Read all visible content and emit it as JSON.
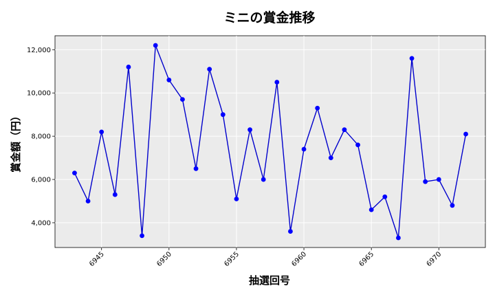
{
  "chart_data": {
    "type": "line",
    "title": "ミニの賞金推移",
    "xlabel": "抽選回号",
    "ylabel": "賞金額（円）",
    "x": [
      6943,
      6944,
      6945,
      6946,
      6947,
      6948,
      6949,
      6950,
      6951,
      6952,
      6953,
      6954,
      6955,
      6956,
      6957,
      6958,
      6959,
      6960,
      6961,
      6962,
      6963,
      6964,
      6965,
      6966,
      6967,
      6968,
      6969,
      6970,
      6971,
      6972
    ],
    "series": [
      {
        "values": [
          6300,
          5000,
          8200,
          5300,
          11200,
          3400,
          12200,
          10600,
          9700,
          6500,
          11100,
          9000,
          5100,
          8300,
          6000,
          10500,
          3600,
          7400,
          9300,
          7000,
          8300,
          7600,
          4600,
          5200,
          3300,
          11600,
          5900,
          6000,
          4800,
          8100
        ]
      }
    ],
    "xticks": [
      6945,
      6950,
      6955,
      6960,
      6965,
      6970
    ],
    "xtick_labels": [
      "6945",
      "6950",
      "6955",
      "6960",
      "6965",
      "6970"
    ],
    "yticks": [
      4000,
      6000,
      8000,
      10000,
      12000
    ],
    "ytick_labels": [
      "4,000",
      "6,000",
      "8,000",
      "10,000",
      "12,000"
    ],
    "xlim": [
      6941.55,
      6973.45
    ],
    "ylim": [
      2855,
      12645
    ],
    "grid": true,
    "colors": {
      "line": "#0000cc",
      "marker": "#0000ff",
      "plot_bg": "#ebebeb",
      "grid": "#ffffff"
    }
  }
}
